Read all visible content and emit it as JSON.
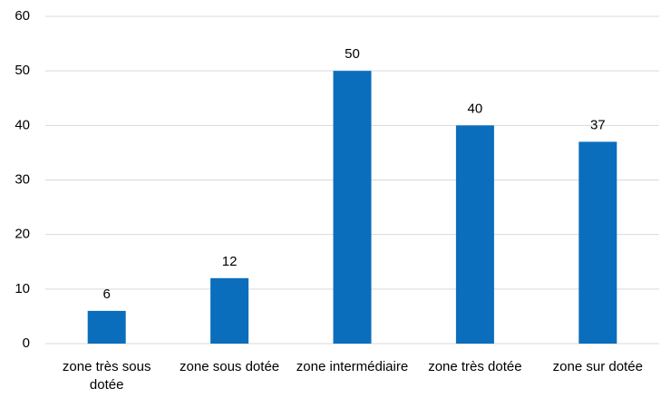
{
  "chart_data": {
    "type": "bar",
    "categories": [
      "zone très sous dotée",
      "zone sous dotée",
      "zone intermédiaire",
      "zone très dotée",
      "zone sur dotée"
    ],
    "values": [
      6,
      12,
      50,
      40,
      37
    ],
    "color": "#0a6ebd",
    "ylim": [
      0,
      60
    ],
    "yticks": [
      0,
      10,
      20,
      30,
      40,
      50,
      60
    ],
    "grid": true
  }
}
